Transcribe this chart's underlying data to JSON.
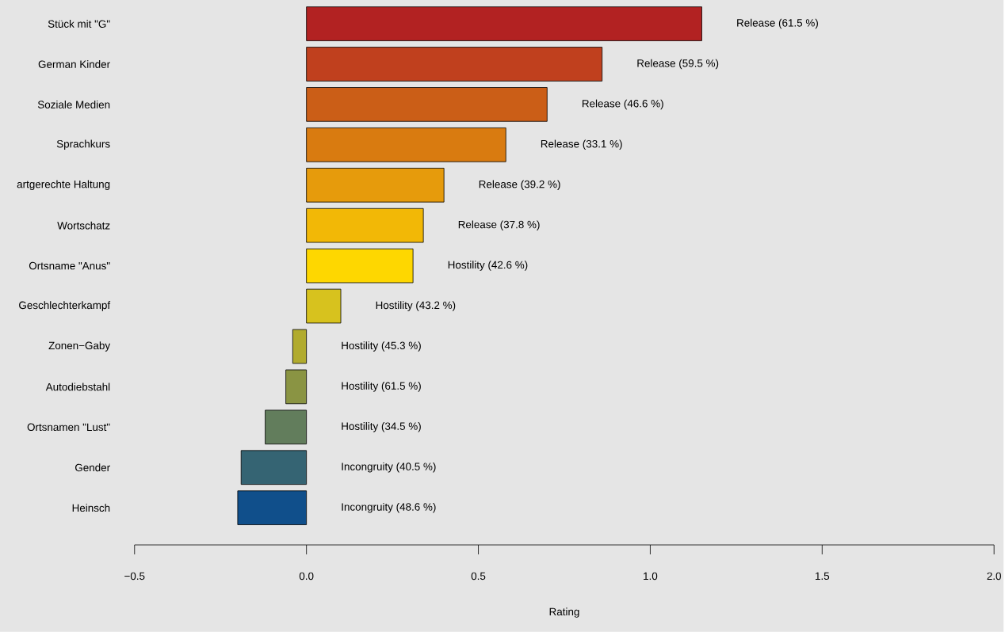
{
  "chart_data": {
    "type": "bar",
    "orientation": "horizontal",
    "xlabel": "Rating",
    "categories": [
      "Stück mit \"G\"",
      "German Kinder",
      "Soziale Medien",
      "Sprachkurs",
      "artgerechte Haltung",
      "Wortschatz",
      "Ortsname \"Anus\"",
      "Geschlechterkampf",
      "Zonen−Gaby",
      "Autodiebstahl",
      "Ortsnamen \"Lust\"",
      "Gender",
      "Heinsch"
    ],
    "values": [
      1.15,
      0.86,
      0.7,
      0.58,
      0.4,
      0.34,
      0.31,
      0.1,
      -0.04,
      -0.06,
      -0.12,
      -0.19,
      -0.2
    ],
    "colors": [
      "#b22222",
      "#c0401e",
      "#cb5e17",
      "#d97b10",
      "#e69b0c",
      "#f2b806",
      "#fed700",
      "#d7c21e",
      "#b1ab2e",
      "#8a9443",
      "#627d5c",
      "#356473",
      "#104f8b"
    ],
    "annotations": [
      "Release (61.5 %)",
      "Release (59.5 %)",
      "Release (46.6 %)",
      "Release (33.1 %)",
      "Release (39.2 %)",
      "Release (37.8 %)",
      "Hostility (42.6 %)",
      "Hostility (43.2 %)",
      "Hostility (45.3 %)",
      "Hostility (61.5 %)",
      "Hostility (34.5 %)",
      "Incongruity (40.5 %)",
      "Incongruity (48.6 %)"
    ],
    "xlim": [
      -0.5,
      2.0
    ],
    "xticks": [
      {
        "value": -0.5,
        "label": "−0.5"
      },
      {
        "value": 0,
        "label": "0.0"
      },
      0.5,
      {
        "value": 1,
        "label": "1.0"
      },
      1.5,
      {
        "value": 2,
        "label": "2.0"
      }
    ]
  }
}
